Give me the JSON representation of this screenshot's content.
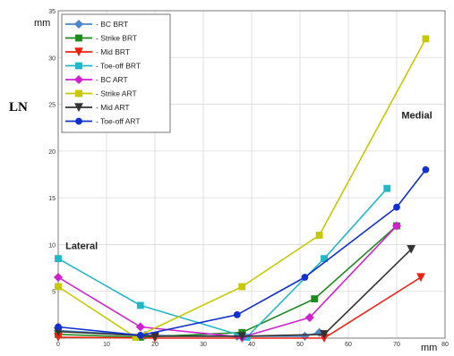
{
  "chart_data": {
    "type": "line",
    "title": "",
    "xlabel": "",
    "ylabel": "LN",
    "x_unit": "mm",
    "y_unit": "mm",
    "xlim": [
      0,
      80
    ],
    "ylim": [
      0,
      35
    ],
    "x_ticks": [
      "0",
      "10",
      "20",
      "30",
      "40",
      "50",
      "60",
      "70",
      "80"
    ],
    "y_ticks": [
      "5",
      "10",
      "15",
      "20",
      "25",
      "30",
      "35"
    ],
    "grid": true,
    "legend_position": "top-left",
    "annotations": [
      {
        "text": "Lateral",
        "x": 1.5,
        "y": 9.5
      },
      {
        "text": "Medial",
        "x": 71,
        "y": 23.5
      }
    ],
    "series": [
      {
        "name": "BC BRT",
        "color": "#4a86c8",
        "marker": "diamond",
        "x": [
          0,
          18,
          37,
          51,
          54
        ],
        "y": [
          0.8,
          0.3,
          0.2,
          0.2,
          0.6
        ]
      },
      {
        "name": "Strike BRT",
        "color": "#1e8a1e",
        "marker": "square",
        "x": [
          0,
          17,
          38,
          53,
          70
        ],
        "y": [
          0.4,
          0.1,
          0.6,
          4.2,
          12.0
        ]
      },
      {
        "name": "Mid BRT",
        "color": "#f02010",
        "marker": "triangle-down",
        "x": [
          0,
          20,
          38,
          55,
          75
        ],
        "y": [
          0.1,
          0.0,
          0.0,
          0.0,
          6.5
        ]
      },
      {
        "name": "Toe-off BRT",
        "color": "#20b8c8",
        "marker": "square",
        "x": [
          0,
          17,
          39,
          55,
          68
        ],
        "y": [
          8.5,
          3.5,
          0.1,
          8.5,
          16.0
        ]
      },
      {
        "name": "BC ART",
        "color": "#d020d0",
        "marker": "diamond",
        "x": [
          0,
          17,
          38,
          52,
          70
        ],
        "y": [
          6.5,
          1.2,
          0.1,
          2.2,
          12.0
        ]
      },
      {
        "name": "Strike ART",
        "color": "#c8c800",
        "marker": "square",
        "x": [
          0,
          16,
          38,
          54,
          76
        ],
        "y": [
          5.5,
          0.1,
          5.5,
          11.0,
          32.0
        ]
      },
      {
        "name": "Mid ART",
        "color": "#333333",
        "marker": "triangle-down",
        "x": [
          0,
          20,
          38,
          55,
          73
        ],
        "y": [
          0.7,
          0.2,
          0.2,
          0.4,
          9.5
        ]
      },
      {
        "name": "Toe-off ART",
        "color": "#1030d0",
        "marker": "circle",
        "x": [
          0,
          17,
          37,
          51,
          70,
          76
        ],
        "y": [
          1.2,
          0.3,
          2.5,
          6.5,
          14.0,
          18.0
        ]
      }
    ]
  }
}
